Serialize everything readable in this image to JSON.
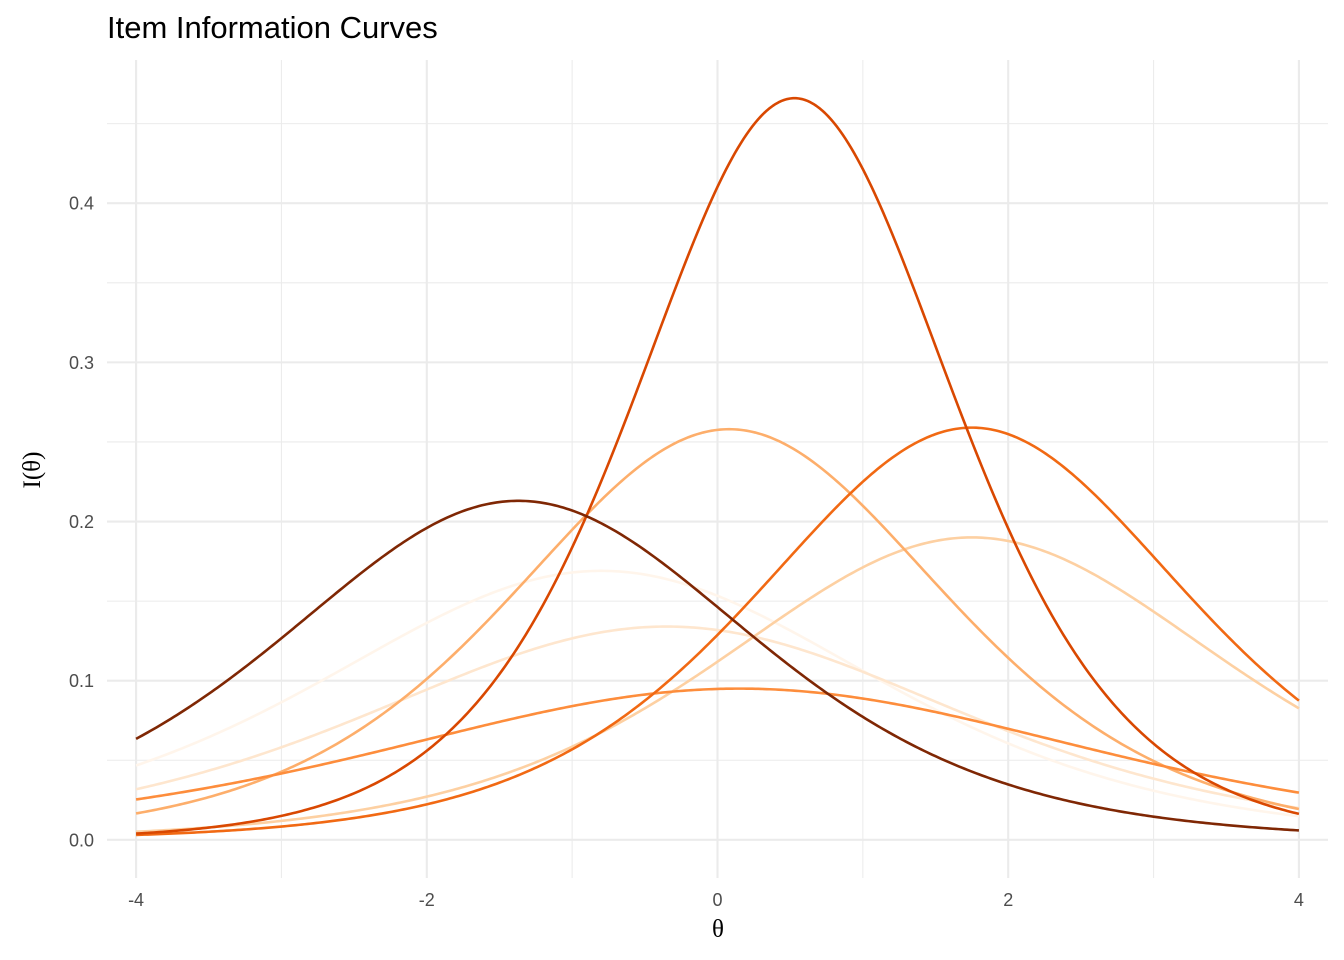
{
  "chart_data": {
    "type": "line",
    "title": "Item Information Curves",
    "xlabel": "θ",
    "ylabel": "I(θ)",
    "xlim": [
      -4.2,
      4.2
    ],
    "ylim": [
      -0.024,
      0.49
    ],
    "x_ticks": [
      -4,
      -2,
      0,
      2,
      4
    ],
    "x_tick_labels": [
      "-4",
      "-2",
      "0",
      "2",
      "4"
    ],
    "x_minor_ticks": [
      -3,
      -1,
      1,
      3
    ],
    "y_ticks": [
      0.0,
      0.1,
      0.2,
      0.3,
      0.4
    ],
    "y_tick_labels": [
      "0.0",
      "0.1",
      "0.2",
      "0.3",
      "0.4"
    ],
    "y_minor_ticks": [
      0.05,
      0.15,
      0.25,
      0.35,
      0.45
    ],
    "grid": true,
    "legend": "none",
    "x_range": [
      -4,
      4
    ],
    "series": [
      {
        "color": "#fff5eb",
        "peak_x": -0.8,
        "peak_y": 0.169,
        "at_min": 0.043,
        "at_max": 0.017
      },
      {
        "color": "#fee6ce",
        "peak_x": -0.35,
        "peak_y": 0.134,
        "at_min": 0.033,
        "at_max": 0.019
      },
      {
        "color": "#fdd0a2",
        "peak_x": 1.75,
        "peak_y": 0.19,
        "at_min": 0.005,
        "at_max": 0.083
      },
      {
        "color": "#fdae6b",
        "peak_x": 0.08,
        "peak_y": 0.258,
        "at_min": 0.016,
        "at_max": 0.02
      },
      {
        "color": "#fd8d3c",
        "peak_x": 0.15,
        "peak_y": 0.095,
        "at_min": 0.025,
        "at_max": 0.03
      },
      {
        "color": "#f16913",
        "peak_x": 1.75,
        "peak_y": 0.259,
        "at_min": 0.003,
        "at_max": 0.088
      },
      {
        "color": "#d94801",
        "peak_x": 0.53,
        "peak_y": 0.466,
        "at_min": 0.004,
        "at_max": 0.016
      },
      {
        "color": "#7f2704",
        "peak_x": -1.37,
        "peak_y": 0.213,
        "at_min": 0.063,
        "at_max": 0.006
      }
    ]
  }
}
